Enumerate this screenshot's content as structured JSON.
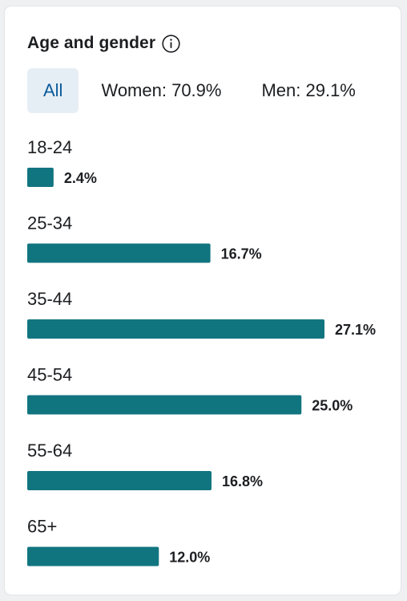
{
  "header": {
    "title": "Age and gender"
  },
  "tabs": [
    {
      "label": "All",
      "selected": true
    },
    {
      "label": "Women: 70.9%",
      "selected": false
    },
    {
      "label": "Men: 29.1%",
      "selected": false
    }
  ],
  "colors": {
    "bar": "#117580",
    "selected_tab_bg": "#e6eef5",
    "selected_tab_text": "#0a5a9a"
  },
  "icons": {
    "info": "info-circle-icon"
  },
  "chart_data": {
    "type": "bar",
    "orientation": "horizontal",
    "categories": [
      "18-24",
      "25-34",
      "35-44",
      "45-54",
      "55-64",
      "65+"
    ],
    "values": [
      2.4,
      16.7,
      27.1,
      25.0,
      16.8,
      12.0
    ],
    "value_labels": [
      "2.4%",
      "16.7%",
      "27.1%",
      "25.0%",
      "16.8%",
      "12.0%"
    ],
    "unit": "%",
    "grid": false
  }
}
